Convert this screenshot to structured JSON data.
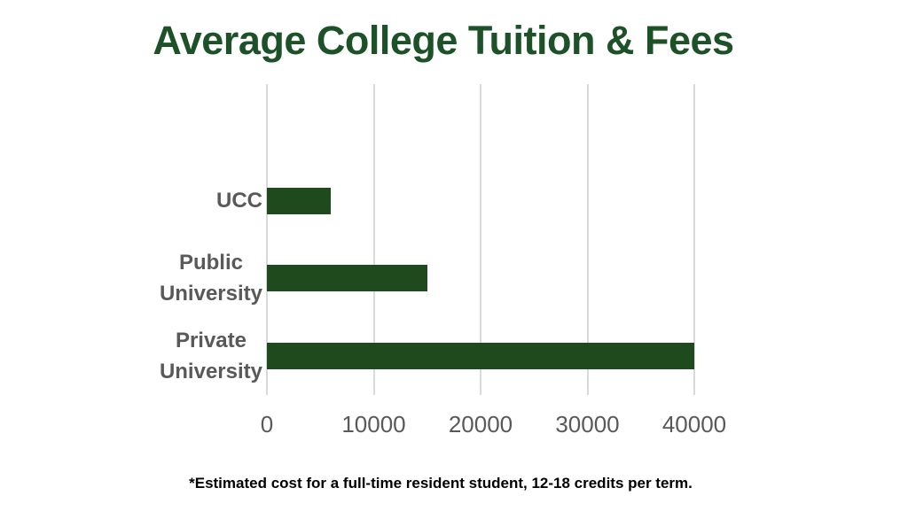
{
  "chart_data": {
    "type": "bar",
    "orientation": "horizontal",
    "title": "Average College Tuition & Fees",
    "categories": [
      "UCC",
      "Public University",
      "Private University"
    ],
    "category_display_lines": [
      [
        "UCC"
      ],
      [
        "Public",
        "University"
      ],
      [
        "Private",
        "University"
      ]
    ],
    "values": [
      6000,
      15000,
      40000
    ],
    "x_ticks": [
      0,
      10000,
      20000,
      30000,
      40000
    ],
    "x_tick_labels": [
      "0",
      "10000",
      "20000",
      "30000",
      "40000"
    ],
    "xlim": [
      0,
      40000
    ],
    "grid": "vertical-gridlines-only",
    "legend": "none",
    "footnote": "*Estimated cost for a full-time resident student, 12-18 credits per term."
  },
  "colors": {
    "title_green": "#1D5128",
    "bar_green": "#1F4A1E",
    "label_gray": "#595959",
    "gridline_gray": "#D9D9D9",
    "footnote_black": "#000000"
  }
}
